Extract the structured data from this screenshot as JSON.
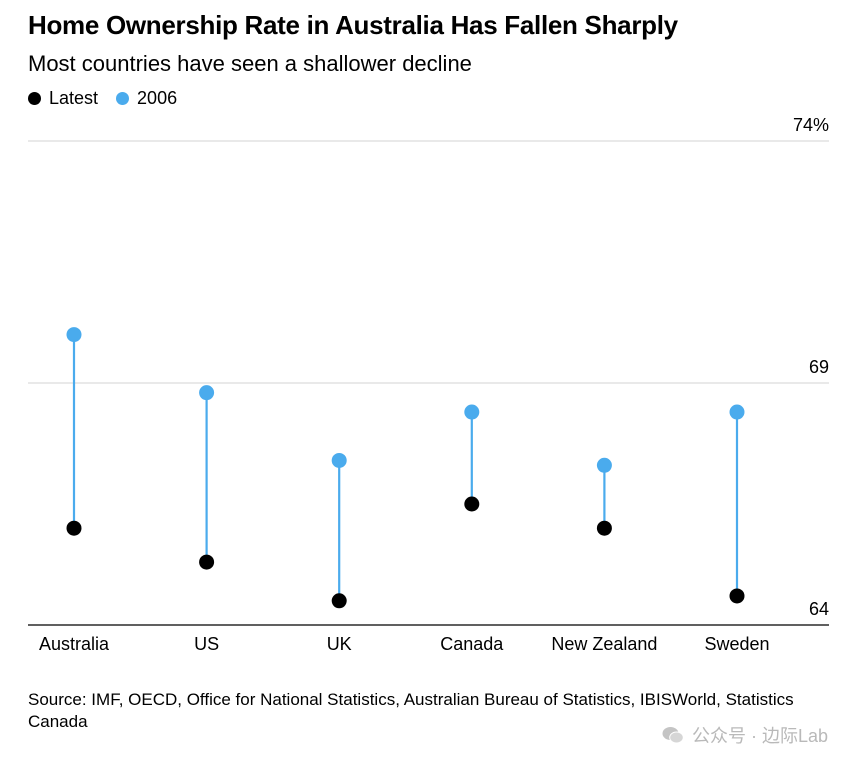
{
  "chart_data": {
    "type": "dot-range",
    "title": "Home Ownership Rate in Australia Has Fallen Sharply",
    "subtitle": "Most countries have seen a shallower decline",
    "legend": [
      {
        "name": "Latest",
        "color": "#000000"
      },
      {
        "name": "2006",
        "color": "#4aabed"
      }
    ],
    "categories": [
      "Australia",
      "US",
      "UK",
      "Canada",
      "New Zealand",
      "Sweden"
    ],
    "series": [
      {
        "name": "Latest",
        "values": [
          66.0,
          65.3,
          64.5,
          66.5,
          66.0,
          64.6
        ]
      },
      {
        "name": "2006",
        "values": [
          70.0,
          68.8,
          67.4,
          68.4,
          67.3,
          68.4
        ]
      }
    ],
    "ylim": [
      64,
      74
    ],
    "yticks": [
      {
        "value": 74,
        "label": "74%"
      },
      {
        "value": 69,
        "label": "69"
      },
      {
        "value": 64,
        "label": "64"
      }
    ],
    "grid": true,
    "source": "Source: IMF, OECD, Office for National Statistics, Australian Bureau of Statistics, IBISWorld, Statistics Canada"
  },
  "watermark": "公众号 · 边际Lab",
  "watermark_icon": "wechat-icon"
}
